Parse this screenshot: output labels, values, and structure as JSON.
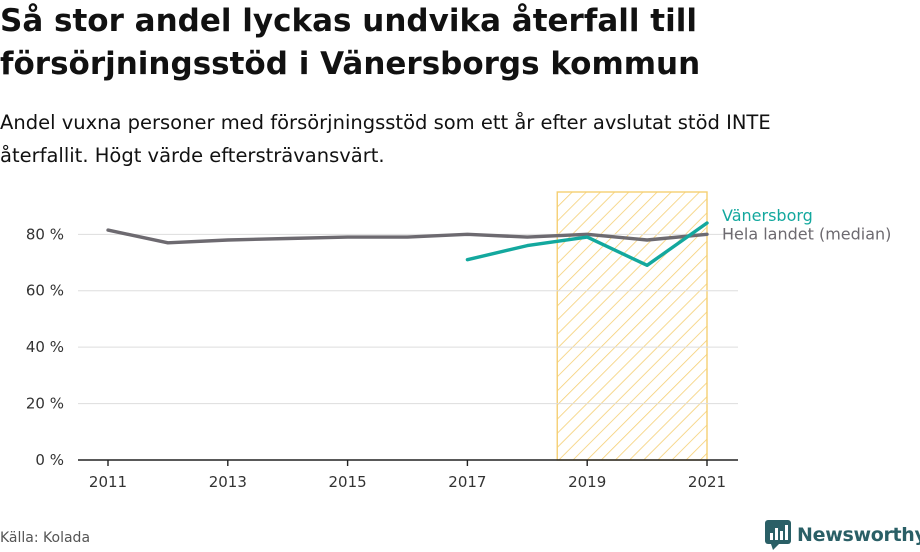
{
  "title_line1": "Så stor andel lyckas undvika återfall till",
  "title_line2": "försörjningsstöd i Vänersborgs kommun",
  "subtitle_line1": "Andel vuxna personer med försörjningsstöd som ett år efter avslutat stöd INTE",
  "subtitle_line2": "återfallit. Högt värde eftersträvansvärt.",
  "source": "Källa: Kolada",
  "brand": "Newsworthy",
  "chart_data": {
    "type": "line",
    "x": [
      2011,
      2012,
      2013,
      2014,
      2015,
      2016,
      2017,
      2018,
      2019,
      2020,
      2021
    ],
    "x_ticks": [
      2011,
      2013,
      2015,
      2017,
      2019,
      2021
    ],
    "y_ticks": [
      0,
      20,
      40,
      60,
      80
    ],
    "y_tick_labels": [
      "0 %",
      "20 %",
      "40 %",
      "60 %",
      "80 %"
    ],
    "ylim": [
      0,
      95
    ],
    "xlim": [
      2011,
      2021
    ],
    "grid": true,
    "highlight_range": [
      2018.5,
      2021
    ],
    "series": [
      {
        "name": "Hela landet (median)",
        "color": "#6d6a70",
        "x": [
          2011,
          2012,
          2013,
          2014,
          2015,
          2016,
          2017,
          2018,
          2019,
          2020,
          2021
        ],
        "values": [
          81.5,
          77,
          78,
          78.5,
          79,
          79,
          80,
          79,
          80,
          78,
          80
        ]
      },
      {
        "name": "Vänersborg",
        "color": "#13a89e",
        "x": [
          2017,
          2018,
          2019,
          2020,
          2021
        ],
        "values": [
          71,
          76,
          79,
          69,
          84
        ]
      }
    ]
  }
}
